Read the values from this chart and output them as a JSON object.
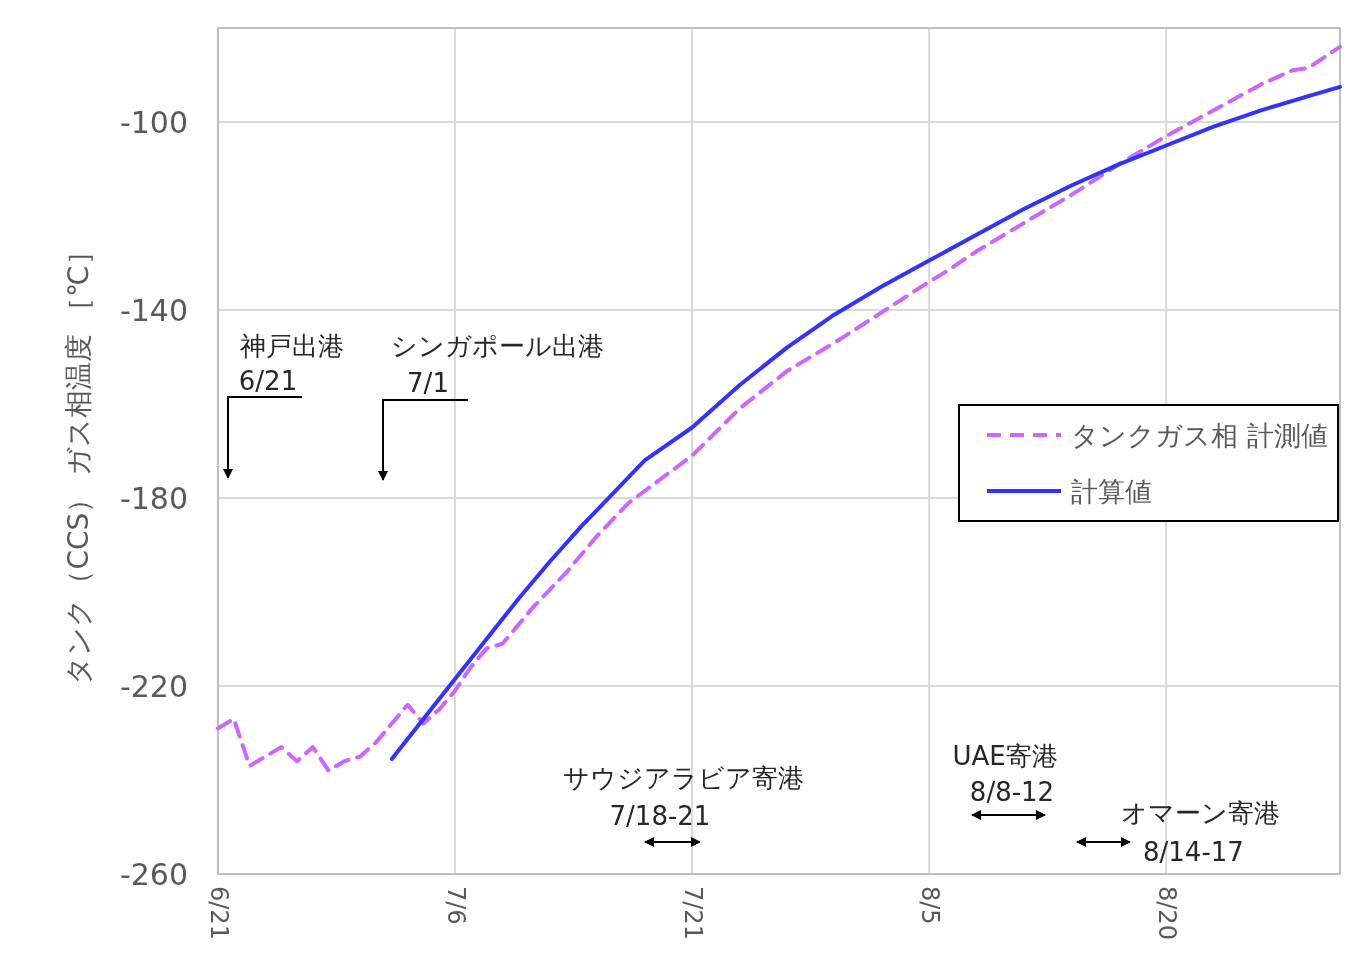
{
  "chart_data": {
    "type": "line",
    "ylabel": "タンク（CCS） ガス相温度 ［℃］",
    "xlim": [
      "--06-21",
      "--08-31"
    ],
    "xticks": [
      {
        "value": "--06-21",
        "label": "6/21"
      },
      {
        "value": "--07-06",
        "label": "7/6"
      },
      {
        "value": "--07-21",
        "label": "7/21"
      },
      {
        "value": "--08-05",
        "label": "8/5"
      },
      {
        "value": "--08-20",
        "label": "8/20"
      }
    ],
    "ylim": [
      -260,
      -80
    ],
    "yticks": [
      -260,
      -220,
      -180,
      -140,
      -100
    ],
    "grid": true,
    "legend": "right",
    "marker": "none",
    "series": [
      {
        "name": "タンクガス相 計測値",
        "color": "#cc66ff",
        "line_style": "dashed",
        "x": [
          "--06-21",
          "--06-22",
          "--06-23",
          "--06-24",
          "--06-25",
          "--06-26",
          "--06-27",
          "--06-28",
          "--06-29",
          "--06-30",
          "--07-01",
          "--07-02",
          "--07-03",
          "--07-04",
          "--07-05",
          "--07-06",
          "--07-07",
          "--07-08",
          "--07-09",
          "--07-10",
          "--07-11",
          "--07-13",
          "--07-15",
          "--07-17",
          "--07-19",
          "--07-21",
          "--07-24",
          "--07-27",
          "--07-30",
          "--08-02",
          "--08-05",
          "--08-06",
          "--08-08",
          "--08-11",
          "--08-14",
          "--08-17",
          "--08-20",
          "--08-23",
          "--08-26",
          "--08-28",
          "--08-29",
          "--08-31"
        ],
        "values": [
          -229,
          -227,
          -237,
          -235,
          -233,
          -236,
          -233,
          -238,
          -236,
          -235,
          -232,
          -228,
          -224,
          -228,
          -225,
          -221,
          -216,
          -212,
          -211,
          -207,
          -203,
          -196,
          -188,
          -181,
          -176,
          -171,
          -161,
          -153,
          -147,
          -140.5,
          -134,
          -132,
          -127.5,
          -121.5,
          -115.5,
          -109,
          -103,
          -97.5,
          -92,
          -89,
          -88.5,
          -84
        ]
      },
      {
        "name": "計算値",
        "color": "#3333ff",
        "line_style": "solid",
        "x": [
          "--07-02",
          "--07-04",
          "--07-06",
          "--07-08",
          "--07-10",
          "--07-12",
          "--07-14",
          "--07-16",
          "--07-18",
          "--07-21",
          "--07-24",
          "--07-27",
          "--07-30",
          "--08-02",
          "--08-05",
          "--08-08",
          "--08-11",
          "--08-14",
          "--08-17",
          "--08-20",
          "--08-23",
          "--08-26",
          "--08-29",
          "--08-31"
        ],
        "values": [
          -235.5,
          -227,
          -218.5,
          -210,
          -201.5,
          -193.5,
          -186,
          -179,
          -172,
          -165,
          -156,
          -148,
          -141,
          -135,
          -129.5,
          -124,
          -118.5,
          -113.5,
          -109,
          -105,
          -101,
          -97.5,
          -94.5,
          -92.5
        ]
      }
    ],
    "annotations": [
      "神戸出港",
      "6/21",
      "シンガポール出港",
      "7/1",
      "サウジアラビア寄港",
      "7/18-21",
      "UAE寄港",
      "8/8-12",
      "オマーン寄港",
      "8/14-17"
    ]
  }
}
